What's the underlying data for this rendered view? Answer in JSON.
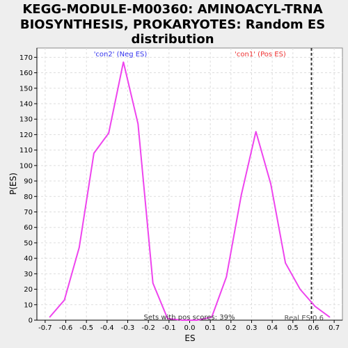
{
  "chart_data": {
    "type": "line",
    "title_lines": [
      "KEGG-MODULE-M00360: AMINOACYL-TRNA",
      "BIOSYNTHESIS, PROKARYOTES: Random ES",
      "distribution"
    ],
    "xlabel": "ES",
    "ylabel": "P(ES)",
    "xlim": [
      -0.74,
      0.74
    ],
    "ylim": [
      0,
      176
    ],
    "xticks": [
      -0.7,
      -0.6,
      -0.5,
      -0.4,
      -0.3,
      -0.2,
      -0.1,
      0.0,
      0.1,
      0.2,
      0.3,
      0.4,
      0.5,
      0.6,
      0.7
    ],
    "xtick_labels": [
      "-0.7",
      "-0.6",
      "-0.5",
      "-0.4",
      "-0.3",
      "-0.2",
      "-0.1",
      "0.0",
      "0.1",
      "0.2",
      "0.3",
      "0.4",
      "0.5",
      "0.6",
      "0.7"
    ],
    "yticks": [
      0,
      10,
      20,
      30,
      40,
      50,
      60,
      70,
      80,
      90,
      100,
      110,
      120,
      130,
      140,
      150,
      160,
      170
    ],
    "grid": true,
    "series": [
      {
        "color": "#ee44ee",
        "x": [
          -0.678,
          -0.607,
          -0.535,
          -0.464,
          -0.392,
          -0.321,
          -0.25,
          -0.178,
          -0.107,
          -0.036,
          0.036,
          0.107,
          0.178,
          0.25,
          0.321,
          0.393,
          0.464,
          0.535,
          0.607,
          0.678
        ],
        "y": [
          2,
          13,
          47,
          108,
          121,
          167,
          127,
          24,
          1,
          0,
          0,
          2,
          28,
          81,
          122,
          88,
          37,
          20,
          9,
          2
        ]
      }
    ],
    "real_es": {
      "value": 0.59,
      "label": "Real ES 0.6",
      "color": "#333333"
    },
    "annotations": {
      "neg_label": "'con2' (Neg ES)",
      "neg_color": "#3333ee",
      "pos_label": "'con1' (Pos ES)",
      "pos_color": "#ee3333",
      "pos_scores_text": "Sets with pos scores: 39%"
    }
  }
}
